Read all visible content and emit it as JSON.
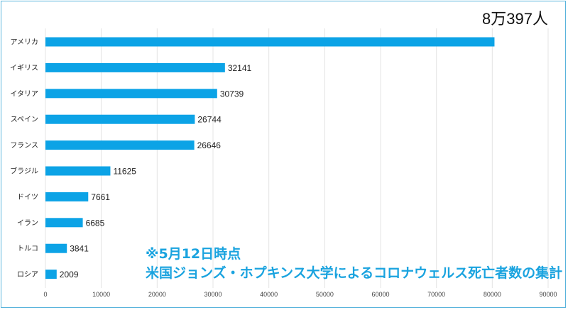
{
  "chart_data": {
    "type": "bar",
    "orientation": "horizontal",
    "categories": [
      "アメリカ",
      "イギリス",
      "イタリア",
      "スペイン",
      "フランス",
      "ブラジル",
      "ドイツ",
      "イラン",
      "トルコ",
      "ロシア"
    ],
    "values": [
      80397,
      32141,
      30739,
      26744,
      26646,
      11625,
      7661,
      6685,
      3841,
      2009
    ],
    "data_labels": [
      "8万397人",
      "32141",
      "30739",
      "26744",
      "26646",
      "11625",
      "7661",
      "6685",
      "3841",
      "2009"
    ],
    "xlim": [
      0,
      90000
    ],
    "xticks": [
      0,
      10000,
      20000,
      30000,
      40000,
      50000,
      60000,
      70000,
      80000,
      90000
    ],
    "grid": true,
    "bar_color": "#0ca3e6",
    "annotation": {
      "line1": "※5月12日時点",
      "line2": "米国ジョンズ・ホプキンス大学によるコロナウェルス死亡者数の集計",
      "color": "#1aa3df"
    }
  }
}
